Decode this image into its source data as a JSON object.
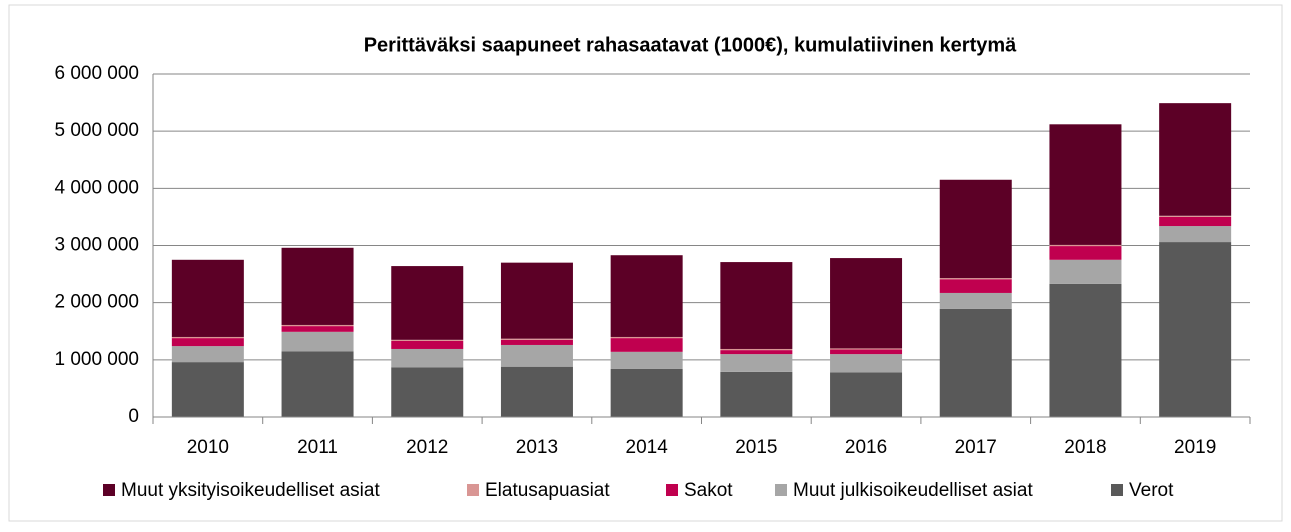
{
  "chart_data": {
    "type": "stacked_bar",
    "title": "Perittäväksi saapuneet rahasaatavat (1000€), kumulatiivinen kertymä",
    "categories": [
      "2010",
      "2011",
      "2012",
      "2013",
      "2014",
      "2015",
      "2016",
      "2017",
      "2018",
      "2019"
    ],
    "series": [
      {
        "name": "Muut yksityisoikeudelliset asiat",
        "color": "#5c0026",
        "values": [
          1350000,
          1350000,
          1290000,
          1330000,
          1430000,
          1520000,
          1580000,
          1720000,
          2110000,
          1970000
        ]
      },
      {
        "name": "Elatusapuasiat",
        "color": "#d99694",
        "values": [
          20000,
          20000,
          20000,
          20000,
          20000,
          20000,
          20000,
          20000,
          20000,
          20000
        ]
      },
      {
        "name": "Sakot",
        "color": "#c0004f",
        "values": [
          140000,
          100000,
          140000,
          90000,
          240000,
          70000,
          80000,
          240000,
          240000,
          160000
        ]
      },
      {
        "name": "Muut julkisoikeudelliset asiat",
        "color": "#a6a6a6",
        "values": [
          280000,
          340000,
          320000,
          380000,
          300000,
          310000,
          320000,
          280000,
          420000,
          280000
        ]
      },
      {
        "name": "Verot",
        "color": "#595959",
        "values": [
          960000,
          1150000,
          870000,
          880000,
          840000,
          790000,
          780000,
          1890000,
          2330000,
          3060000
        ]
      }
    ],
    "ylim": [
      0,
      6000000
    ],
    "yticks": [
      0,
      {
        "value": 1000000,
        "label": "1 000 000"
      },
      {
        "value": 2000000,
        "label": "2 000 000"
      },
      {
        "value": 3000000,
        "label": "3 000 000"
      },
      {
        "value": 4000000,
        "label": "4 000 000"
      },
      {
        "value": 5000000,
        "label": "5 000 000"
      },
      {
        "value": 6000000,
        "label": "6 000 000"
      }
    ],
    "grid": true,
    "legend": "bottom"
  }
}
